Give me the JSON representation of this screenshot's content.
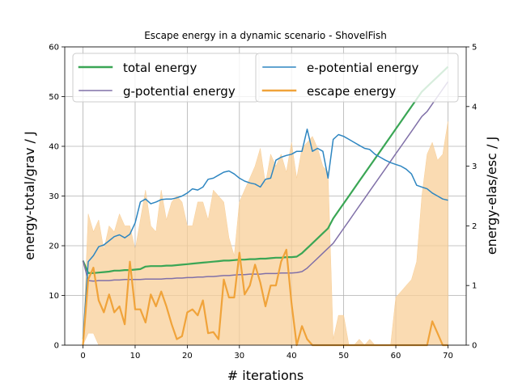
{
  "chart_data": {
    "type": "line",
    "title": "Escape energy in a dynamic scenario - ShovelFish",
    "xlabel": "# iterations",
    "ylabel_left": "energy-total/grav / J",
    "ylabel_right": "energy-elas/esc / J",
    "xlim": [
      -3.5,
      73.5
    ],
    "ylim_left": [
      0,
      60
    ],
    "ylim_right": [
      0,
      5
    ],
    "xticks": [
      0,
      10,
      20,
      30,
      40,
      50,
      60,
      70
    ],
    "yticks_left": [
      0,
      10,
      20,
      30,
      40,
      50,
      60
    ],
    "yticks_right": [
      0,
      1,
      2,
      3,
      4,
      5
    ],
    "grid": true,
    "legend_location": "top",
    "colors": {
      "total": "#3aa655",
      "gpot": "#8070a8",
      "epot": "#2e86c1",
      "esc": "#f0a33a",
      "band": "#f8cf98"
    },
    "series": [
      {
        "name": "total energy",
        "axis": "left",
        "color": "#3aa655",
        "x": [
          0,
          1,
          2,
          3,
          4,
          5,
          6,
          7,
          8,
          9,
          10,
          11,
          12,
          13,
          14,
          15,
          16,
          17,
          18,
          19,
          20,
          21,
          22,
          23,
          24,
          25,
          26,
          27,
          28,
          29,
          30,
          31,
          32,
          33,
          34,
          35,
          36,
          37,
          38,
          39,
          40,
          41,
          42,
          43,
          44,
          45,
          46,
          47,
          48,
          49,
          50,
          51,
          52,
          53,
          54,
          55,
          56,
          57,
          58,
          59,
          60,
          61,
          62,
          63,
          64,
          65,
          66,
          67,
          68,
          69,
          70
        ],
        "y": [
          17,
          14.5,
          14.5,
          14.6,
          14.7,
          14.8,
          15,
          15,
          15.1,
          15.1,
          15.2,
          15.3,
          15.8,
          15.9,
          15.9,
          15.9,
          16,
          16,
          16.1,
          16.2,
          16.3,
          16.4,
          16.5,
          16.6,
          16.7,
          16.8,
          16.9,
          17,
          17,
          17.1,
          17.2,
          17.2,
          17.3,
          17.3,
          17.4,
          17.4,
          17.5,
          17.6,
          17.6,
          17.7,
          17.7,
          17.8,
          18.5,
          19.5,
          20.5,
          21.5,
          22.5,
          23.5,
          25.5,
          27,
          28.5,
          30,
          31.5,
          33,
          34.5,
          36,
          37.5,
          39,
          40.5,
          42,
          43.5,
          45,
          46.5,
          48,
          49.5,
          51,
          52,
          53,
          54,
          55,
          56
        ]
      },
      {
        "name": "g-potential energy",
        "axis": "left",
        "color": "#8070a8",
        "x": [
          0,
          1,
          2,
          3,
          4,
          5,
          6,
          7,
          8,
          9,
          10,
          11,
          12,
          13,
          14,
          15,
          16,
          17,
          18,
          19,
          20,
          21,
          22,
          23,
          24,
          25,
          26,
          27,
          28,
          29,
          30,
          31,
          32,
          33,
          34,
          35,
          36,
          37,
          38,
          39,
          40,
          41,
          42,
          43,
          44,
          45,
          46,
          47,
          48,
          49,
          50,
          51,
          52,
          53,
          54,
          55,
          56,
          57,
          58,
          59,
          60,
          61,
          62,
          63,
          64,
          65,
          66,
          67,
          68,
          69,
          70
        ],
        "y": [
          17,
          13,
          12.9,
          13,
          13,
          13,
          13.1,
          13.1,
          13.2,
          13.2,
          13.2,
          13.2,
          13.3,
          13.3,
          13.3,
          13.3,
          13.4,
          13.4,
          13.5,
          13.5,
          13.6,
          13.6,
          13.7,
          13.7,
          13.8,
          13.8,
          13.9,
          14,
          14,
          14.1,
          14.2,
          14.2,
          14.3,
          14.3,
          14.3,
          14.4,
          14.4,
          14.4,
          14.5,
          14.5,
          14.5,
          14.6,
          14.8,
          15.5,
          16.5,
          17.5,
          18.5,
          19.5,
          20.5,
          22,
          23.5,
          25,
          26.5,
          28,
          29.5,
          31,
          32.5,
          34,
          35.5,
          37,
          38.5,
          40,
          41.5,
          43,
          44.5,
          46,
          47,
          48.5,
          50,
          51.5,
          53
        ]
      },
      {
        "name": "e-potential energy",
        "axis": "right",
        "color": "#2e86c1",
        "x": [
          0,
          1,
          2,
          3,
          4,
          5,
          6,
          7,
          8,
          9,
          10,
          11,
          12,
          13,
          14,
          15,
          16,
          17,
          18,
          19,
          20,
          21,
          22,
          23,
          24,
          25,
          26,
          27,
          28,
          29,
          30,
          31,
          32,
          33,
          34,
          35,
          36,
          37,
          38,
          39,
          40,
          41,
          42,
          43,
          44,
          45,
          46,
          47,
          48,
          49,
          50,
          51,
          52,
          53,
          54,
          55,
          56,
          57,
          58,
          59,
          60,
          61,
          62,
          63,
          64,
          65,
          66,
          67,
          68,
          69,
          70
        ],
        "y": [
          0.1,
          1.4,
          1.5,
          1.65,
          1.68,
          1.75,
          1.82,
          1.85,
          1.8,
          1.86,
          2.05,
          2.4,
          2.45,
          2.37,
          2.4,
          2.44,
          2.45,
          2.45,
          2.47,
          2.5,
          2.55,
          2.62,
          2.6,
          2.65,
          2.78,
          2.8,
          2.85,
          2.9,
          2.92,
          2.87,
          2.8,
          2.75,
          2.72,
          2.7,
          2.65,
          2.78,
          2.8,
          3.1,
          3.15,
          3.18,
          3.2,
          3.25,
          3.25,
          3.62,
          3.25,
          3.3,
          3.25,
          2.8,
          3.45,
          3.53,
          3.5,
          3.45,
          3.4,
          3.35,
          3.3,
          3.28,
          3.2,
          3.15,
          3.1,
          3.06,
          3.03,
          3,
          2.95,
          2.87,
          2.68,
          2.65,
          2.62,
          2.55,
          2.5,
          2.45,
          2.43
        ]
      },
      {
        "name": "escape energy",
        "axis": "right",
        "color": "#f0a33a",
        "x": [
          0,
          1,
          2,
          3,
          4,
          5,
          6,
          7,
          8,
          9,
          10,
          11,
          12,
          13,
          14,
          15,
          16,
          17,
          18,
          19,
          20,
          21,
          22,
          23,
          24,
          25,
          26,
          27,
          28,
          29,
          30,
          31,
          32,
          33,
          34,
          35,
          36,
          37,
          38,
          39,
          40,
          41,
          42,
          43,
          44,
          45,
          46,
          47,
          48,
          49,
          50,
          51,
          52,
          53,
          54,
          55,
          56,
          57,
          58,
          59,
          60,
          61,
          62,
          63,
          64,
          65,
          66,
          67,
          68,
          69,
          70
        ],
        "y": [
          0,
          1.1,
          1.3,
          0.75,
          0.55,
          0.85,
          0.55,
          0.65,
          0.35,
          1.4,
          0.6,
          0.6,
          0.38,
          0.85,
          0.65,
          0.9,
          0.65,
          0.35,
          0.1,
          0.15,
          0.55,
          0.6,
          0.5,
          0.75,
          0.2,
          0.22,
          0.1,
          1.1,
          0.8,
          0.8,
          1.55,
          0.85,
          1,
          1.35,
          1.05,
          0.65,
          1,
          1,
          1.4,
          1.6,
          0.7,
          0,
          0.32,
          0.1,
          0,
          0,
          0,
          0,
          0,
          0,
          0,
          0,
          0,
          0,
          0,
          0,
          0,
          0,
          0,
          0,
          0,
          0,
          0,
          0,
          0,
          0,
          0,
          0.4,
          0.2,
          0,
          0
        ]
      }
    ],
    "band": {
      "name": "escape energy spread",
      "axis": "right",
      "color": "#f8cf98",
      "x": [
        0,
        1,
        2,
        3,
        4,
        5,
        6,
        7,
        8,
        9,
        10,
        11,
        12,
        13,
        14,
        15,
        16,
        17,
        18,
        19,
        20,
        21,
        22,
        23,
        24,
        25,
        26,
        27,
        28,
        29,
        30,
        31,
        32,
        33,
        34,
        35,
        36,
        37,
        38,
        39,
        40,
        41,
        42,
        43,
        44,
        45,
        46,
        47,
        48,
        49,
        50,
        51,
        52,
        53,
        54,
        55,
        56,
        57,
        58,
        59,
        60,
        61,
        62,
        63,
        64,
        65,
        66,
        67,
        68,
        69,
        70
      ],
      "upper": [
        0,
        2.2,
        1.9,
        2.1,
        1.6,
        2.0,
        1.9,
        2.2,
        2.0,
        2.0,
        1.6,
        2.1,
        2.6,
        2.0,
        1.9,
        2.6,
        2.1,
        2.4,
        2.5,
        2.4,
        2.0,
        2.0,
        2.4,
        2.4,
        2.1,
        2.6,
        2.5,
        2.4,
        1.8,
        1.5,
        2.4,
        2.6,
        2.8,
        3.0,
        3.3,
        2.7,
        3.2,
        3.0,
        3.2,
        2.9,
        3.4,
        2.8,
        3.3,
        3.4,
        3.5,
        3.3,
        3.0,
        2.9,
        0.1,
        0.5,
        0.5,
        0,
        0,
        0.1,
        0,
        0.1,
        0,
        0,
        0,
        0,
        0.8,
        0.9,
        1.0,
        1.1,
        1.4,
        2.5,
        3.2,
        3.4,
        3.1,
        3.2,
        3.75
      ],
      "lower": [
        0,
        0.2,
        0.2,
        0,
        0,
        0,
        0,
        0,
        0,
        0,
        0,
        0,
        0,
        0,
        0,
        0,
        0,
        0,
        0,
        0,
        0,
        0,
        0,
        0,
        0,
        0,
        0,
        0,
        0,
        0,
        0,
        0,
        0,
        0,
        0,
        0,
        0,
        0,
        0,
        0,
        0,
        0,
        0,
        0,
        0,
        0,
        0,
        0,
        0,
        0,
        0,
        0,
        0,
        0,
        0,
        0,
        0,
        0,
        0,
        0,
        0,
        0,
        0,
        0,
        0,
        0,
        0,
        0,
        0,
        0,
        0
      ]
    },
    "legend": [
      [
        "total energy",
        "g-potential energy"
      ],
      [
        "e-potential energy",
        "escape energy"
      ]
    ]
  }
}
